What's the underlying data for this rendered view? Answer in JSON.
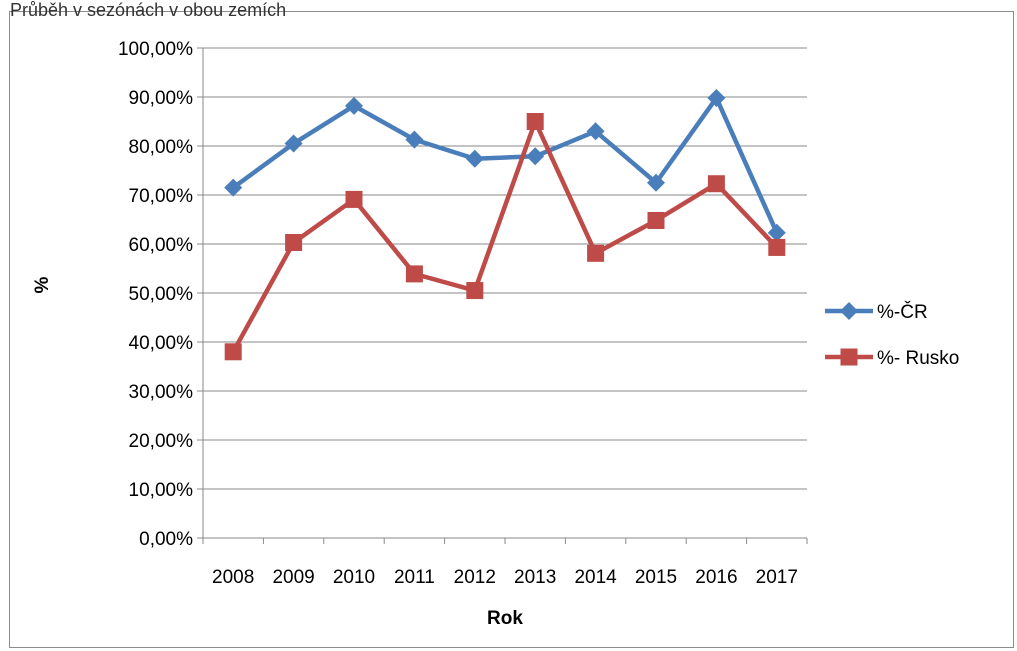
{
  "cropped_caption": "Průběh v sezónách v obou zemích",
  "chart_data": {
    "type": "line",
    "categories": [
      "2008",
      "2009",
      "2010",
      "2011",
      "2012",
      "2013",
      "2014",
      "2015",
      "2016",
      "2017"
    ],
    "series": [
      {
        "name": "%-ČR",
        "color": "#4a7ebb",
        "marker": "diamond",
        "values": [
          71.5,
          80.5,
          88.2,
          81.3,
          77.4,
          77.9,
          83.0,
          72.5,
          89.8,
          62.3
        ]
      },
      {
        "name": "%- Rusko",
        "color": "#be4b48",
        "marker": "square",
        "values": [
          38.0,
          60.3,
          69.1,
          53.9,
          50.5,
          85.0,
          58.1,
          64.8,
          72.3,
          59.3
        ]
      }
    ],
    "yticks": [
      "0,00%",
      "10,00%",
      "20,00%",
      "30,00%",
      "40,00%",
      "50,00%",
      "60,00%",
      "70,00%",
      "80,00%",
      "90,00%",
      "100,00%"
    ],
    "ylim": [
      0,
      100
    ],
    "xlabel": "Rok",
    "ylabel": "%",
    "grid": "horizontal",
    "legend_position": "right"
  }
}
